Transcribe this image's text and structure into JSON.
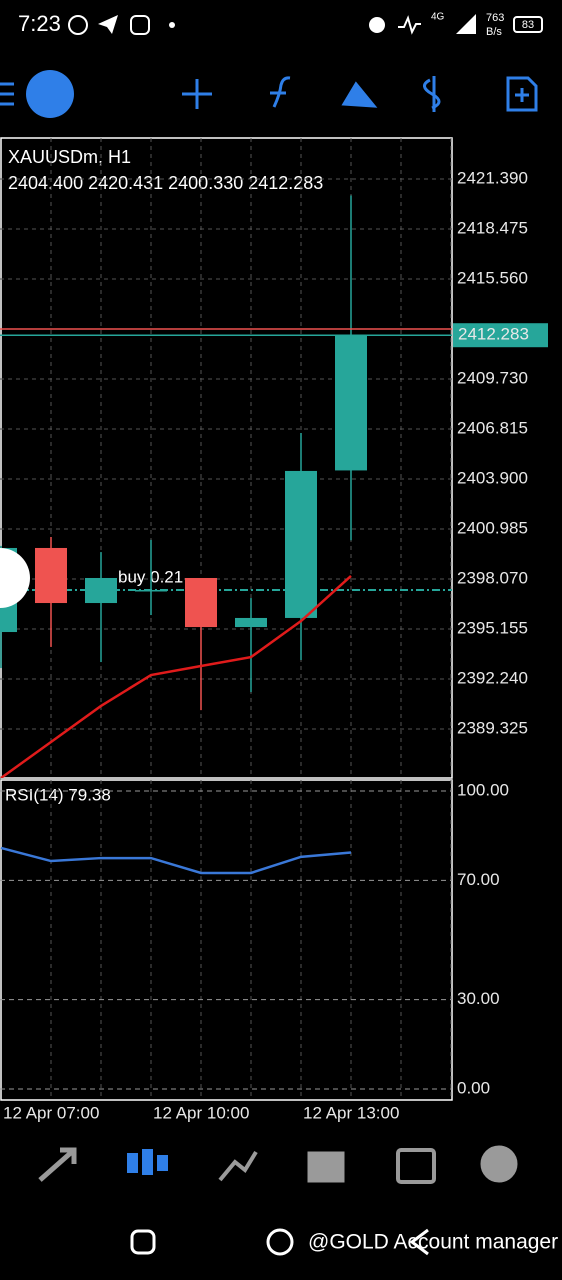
{
  "status_bar": {
    "time": "7:23",
    "network": "4G",
    "speed": "763",
    "speed_unit": "B/s",
    "battery": "83"
  },
  "chart_data": [
    {
      "type": "candlestick",
      "title": "XAUUSDm, H1",
      "subtitle": "2404.400 2420.431 2400.330 2412.283",
      "categories": [
        "12 Apr 07:00",
        null,
        null,
        "12 Apr 10:00",
        null,
        null,
        "12 Apr 13:00",
        null
      ],
      "open": [
        2394.98,
        2399.88,
        2396.67,
        2397.43,
        2398.13,
        2395.27,
        2395.8,
        2404.4
      ],
      "high": [
        2400.0,
        2400.52,
        2399.64,
        2400.35,
        2398.13,
        2396.96,
        2406.58,
        2420.431
      ],
      "low": [
        2392.88,
        2394.11,
        2393.23,
        2395.97,
        2390.43,
        2391.48,
        2393.35,
        2400.33
      ],
      "close": [
        2399.88,
        2396.67,
        2398.13,
        2397.43,
        2395.27,
        2395.8,
        2404.37,
        2412.283
      ],
      "up_color": "#26a69a",
      "down_color": "#ef5350",
      "ma": {
        "color": "#e01b1b",
        "values": [
          2386.47,
          2388.57,
          2390.67,
          2392.47,
          2393.0,
          2393.52,
          2395.62,
          2398.25
        ]
      },
      "bid_line": {
        "value": 2412.283,
        "color": "#26a69a"
      },
      "ask_line": {
        "value": 2412.645,
        "color": "#ef5350"
      },
      "order_line": {
        "value": 2397.43,
        "label": "buy 0.21",
        "color": "#26a69a"
      },
      "ylim": [
        2386.47,
        2423.78
      ],
      "yticks": [
        {
          "value": 2421.39,
          "label": "2421.390"
        },
        2418.475,
        {
          "value": 2415.56,
          "label": "2415.560"
        },
        {
          "value": 2409.73,
          "label": "2409.730"
        },
        2406.815,
        {
          "value": 2403.9,
          "label": "2403.900"
        },
        2400.985,
        {
          "value": 2398.07,
          "label": "2398.070"
        },
        2395.155,
        {
          "value": 2392.24,
          "label": "2392.240"
        },
        2389.325
      ],
      "grid": true
    },
    {
      "type": "line",
      "title": "RSI(14) 79.38",
      "values": [
        80.9,
        76.5,
        77.5,
        77.5,
        72.5,
        72.5,
        77.9,
        79.38
      ],
      "color": "#3a78d8",
      "ylim": [
        -3.7,
        103.7
      ],
      "yticks": [
        {
          "value": 100,
          "label": "100.00"
        },
        {
          "value": 70,
          "label": "70.00"
        },
        {
          "value": 30,
          "label": "30.00"
        },
        {
          "value": 0,
          "label": "0.00"
        }
      ],
      "grid": true
    }
  ],
  "watermark": "@GOLD Account manager"
}
